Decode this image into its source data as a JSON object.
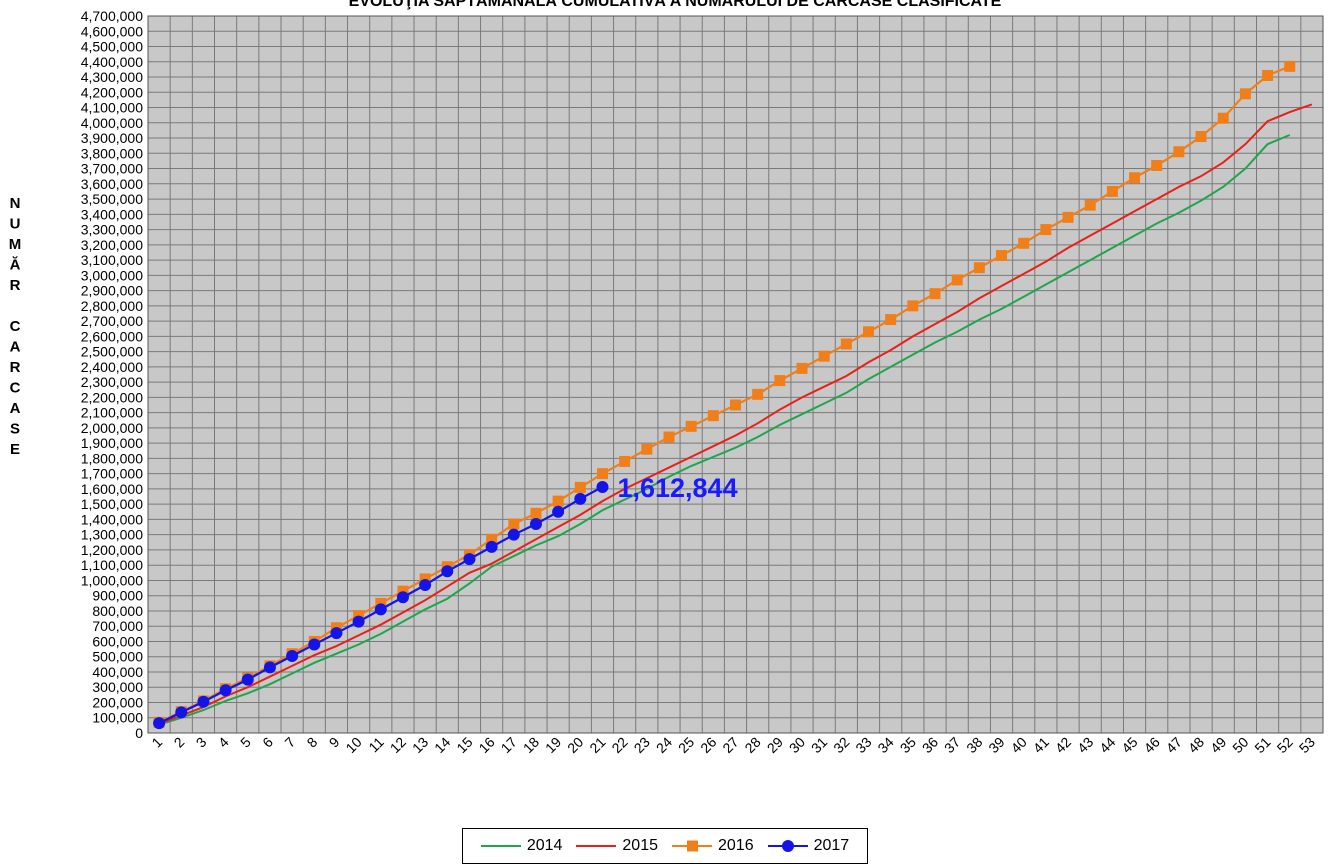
{
  "chart_data": {
    "type": "line",
    "title": "EVOLUŢIA SĂPTĂMÂNALĂ CUMULATIVĂ A NUMĂRULUI DE CARCASE CLASIFICATE",
    "ylabel": "NUMĂR CARCASE",
    "xlabel": "",
    "ylim": [
      0,
      4700000
    ],
    "ytick_step": 100000,
    "xlim": [
      1,
      53
    ],
    "grid": true,
    "legend_position": "bottom-center",
    "annotation": {
      "text": "1,612,844",
      "week": 21,
      "value": 1612844,
      "color": "#1a1aff"
    },
    "series": [
      {
        "name": "2014",
        "color": "#1fa64a",
        "marker": "none",
        "values": [
          55000,
          100000,
          150000,
          210000,
          260000,
          320000,
          390000,
          460000,
          520000,
          580000,
          650000,
          730000,
          810000,
          880000,
          980000,
          1090000,
          1160000,
          1230000,
          1290000,
          1370000,
          1460000,
          1530000,
          1600000,
          1680000,
          1750000,
          1810000,
          1870000,
          1940000,
          2020000,
          2090000,
          2160000,
          2230000,
          2320000,
          2400000,
          2480000,
          2560000,
          2630000,
          2710000,
          2780000,
          2860000,
          2940000,
          3020000,
          3100000,
          3180000,
          3260000,
          3340000,
          3410000,
          3490000,
          3580000,
          3700000,
          3860000,
          3920000
        ]
      },
      {
        "name": "2015",
        "color": "#e8201a",
        "marker": "none",
        "values": [
          60000,
          115000,
          170000,
          240000,
          300000,
          370000,
          440000,
          510000,
          570000,
          640000,
          710000,
          790000,
          870000,
          960000,
          1050000,
          1110000,
          1190000,
          1270000,
          1350000,
          1430000,
          1520000,
          1600000,
          1670000,
          1740000,
          1810000,
          1880000,
          1950000,
          2030000,
          2120000,
          2200000,
          2270000,
          2340000,
          2430000,
          2510000,
          2600000,
          2680000,
          2760000,
          2850000,
          2930000,
          3010000,
          3090000,
          3180000,
          3260000,
          3340000,
          3420000,
          3500000,
          3580000,
          3650000,
          3740000,
          3860000,
          4010000,
          4070000,
          4120000
        ]
      },
      {
        "name": "2016",
        "color": "#f07f1a",
        "marker": "square",
        "values": [
          70000,
          140000,
          210000,
          290000,
          360000,
          440000,
          520000,
          600000,
          690000,
          770000,
          850000,
          930000,
          1010000,
          1090000,
          1170000,
          1270000,
          1370000,
          1440000,
          1520000,
          1610000,
          1700000,
          1780000,
          1860000,
          1940000,
          2010000,
          2080000,
          2150000,
          2220000,
          2310000,
          2390000,
          2470000,
          2550000,
          2630000,
          2710000,
          2800000,
          2880000,
          2970000,
          3050000,
          3130000,
          3210000,
          3300000,
          3380000,
          3460000,
          3550000,
          3640000,
          3720000,
          3810000,
          3910000,
          4030000,
          4190000,
          4310000,
          4370000
        ]
      },
      {
        "name": "2017",
        "color": "#1414e6",
        "marker": "circle",
        "values": [
          65000,
          135000,
          205000,
          280000,
          350000,
          430000,
          505000,
          580000,
          655000,
          730000,
          810000,
          890000,
          970000,
          1060000,
          1140000,
          1220000,
          1300000,
          1370000,
          1450000,
          1535000,
          1612844
        ]
      }
    ]
  }
}
